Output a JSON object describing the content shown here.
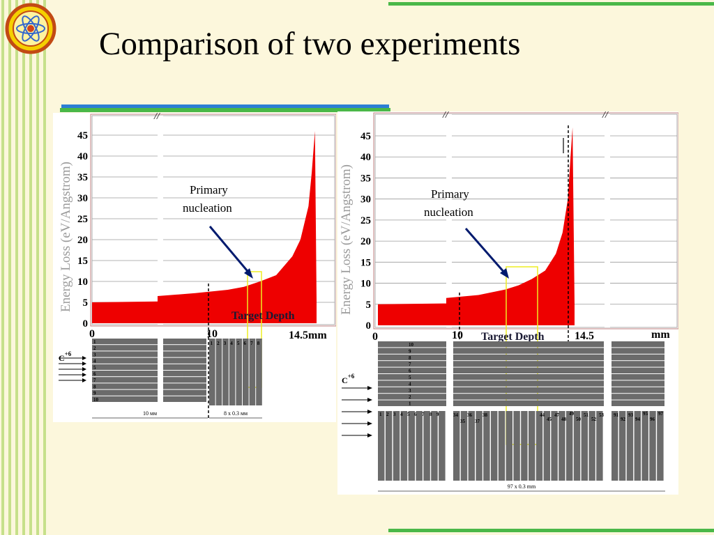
{
  "slide": {
    "title": "Comparison of two experiments"
  },
  "colors": {
    "fill": "#ee0000",
    "highlight": "#eeee22",
    "arrow": "#001a6e",
    "segment": "#6b6b6b",
    "accent_green": "#4ab848"
  },
  "chart_data": [
    {
      "type": "area",
      "title": "",
      "ylabel": "Energy Loss (eV/Angstrom)",
      "xlabel": "",
      "ylim": [
        0,
        45
      ],
      "yticks": [
        "45",
        "40",
        "35",
        "30",
        "25",
        "20",
        "15",
        "10",
        "5",
        "0"
      ],
      "xticks": [
        "0",
        "10",
        "14.5mm"
      ],
      "annotations": [
        "Primary nucleation",
        "Target Depth"
      ],
      "x_mm": [
        0,
        3,
        5,
        7,
        9,
        10,
        11,
        12,
        13,
        13.5,
        14,
        14.2,
        14.4,
        14.5
      ],
      "y": [
        5,
        5.2,
        6.5,
        7.2,
        8,
        8.7,
        10,
        11.5,
        16,
        20,
        28,
        36,
        46,
        5.5
      ],
      "detector": {
        "incident_label": "C",
        "incident_charge": "+6",
        "segments_left": [
          "1",
          "2",
          "3",
          "4",
          "5",
          "6",
          "7",
          "8",
          "9",
          "10"
        ],
        "segments_right": [
          "1",
          "2",
          "3",
          "4",
          "5",
          "6",
          "7",
          "8"
        ],
        "width_label_left": "10 мм",
        "width_label_right": "8 x 0.3 мм"
      }
    },
    {
      "type": "area",
      "title": "",
      "ylabel": "Energy Loss (eV/Angstrom)",
      "xlabel": "",
      "ylim": [
        0,
        45
      ],
      "yticks": [
        "45",
        "40",
        "35",
        "30",
        "25",
        "20",
        "15",
        "10",
        "5",
        "0"
      ],
      "xticks": [
        "0",
        "10",
        "14.5",
        "mm"
      ],
      "annotations": [
        "Primary nucleation",
        "Target Depth"
      ],
      "x_mm": [
        0,
        3,
        5,
        7,
        9,
        10,
        11,
        12,
        12.8,
        13.3,
        13.7,
        13.9,
        14.05,
        14.2
      ],
      "y": [
        5,
        5.2,
        6.5,
        7.2,
        8.5,
        9.5,
        11,
        13,
        17,
        22,
        30,
        40,
        47,
        5
      ],
      "detector": {
        "incident_label": "C",
        "incident_charge": "+6",
        "layers": [
          "10",
          "9",
          "8",
          "7",
          "6",
          "5",
          "4",
          "3",
          "2",
          "1"
        ],
        "segment_labels": [
          "1",
          "2",
          "3",
          "4",
          "5",
          "6",
          "7",
          "8",
          "9",
          "34",
          "35",
          "36",
          "37",
          "38",
          "44",
          "45",
          "47",
          "48",
          "49",
          "50",
          "51",
          "52",
          "53",
          "91",
          "92",
          "93",
          "94",
          "95",
          "96",
          "97"
        ],
        "width_label": "97 x 0.3 mm"
      }
    }
  ]
}
